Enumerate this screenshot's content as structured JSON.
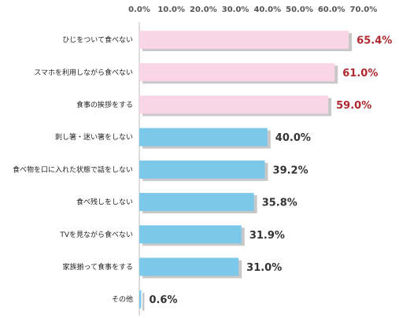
{
  "chart_data": {
    "type": "bar",
    "orientation": "horizontal",
    "categories": [
      "ひじをついて食べない",
      "スマホを利用しながら食べない",
      "食事の挨拶をする",
      "刺し箸・迷い箸をしない",
      "食べ物を口に入れた状態で話をしない",
      "食べ残しをしない",
      "TVを見ながら食べない",
      "家族揃って食事をする",
      "その他"
    ],
    "values": [
      65.4,
      61.0,
      59.0,
      40.0,
      39.2,
      35.8,
      31.9,
      31.0,
      0.6
    ],
    "value_labels": [
      "65.4%",
      "61.0%",
      "59.0%",
      "40.0%",
      "39.2%",
      "35.8%",
      "31.9%",
      "31.0%",
      "0.6%"
    ],
    "x_ticks": [
      "0.0%",
      "10.0%",
      "20.0%",
      "30.0%",
      "40.0%",
      "50.0%",
      "60.0%",
      "70.0%"
    ],
    "xlim": [
      0,
      70
    ],
    "axis_position": "top",
    "grid": false,
    "colors": {
      "highlight_bar": "#f9d5e5",
      "highlight_label": "#b02a30",
      "normal_bar": "#7cc8ea",
      "normal_label": "#333333",
      "shadow": "#c8c8c8"
    },
    "highlight_count": 3
  }
}
